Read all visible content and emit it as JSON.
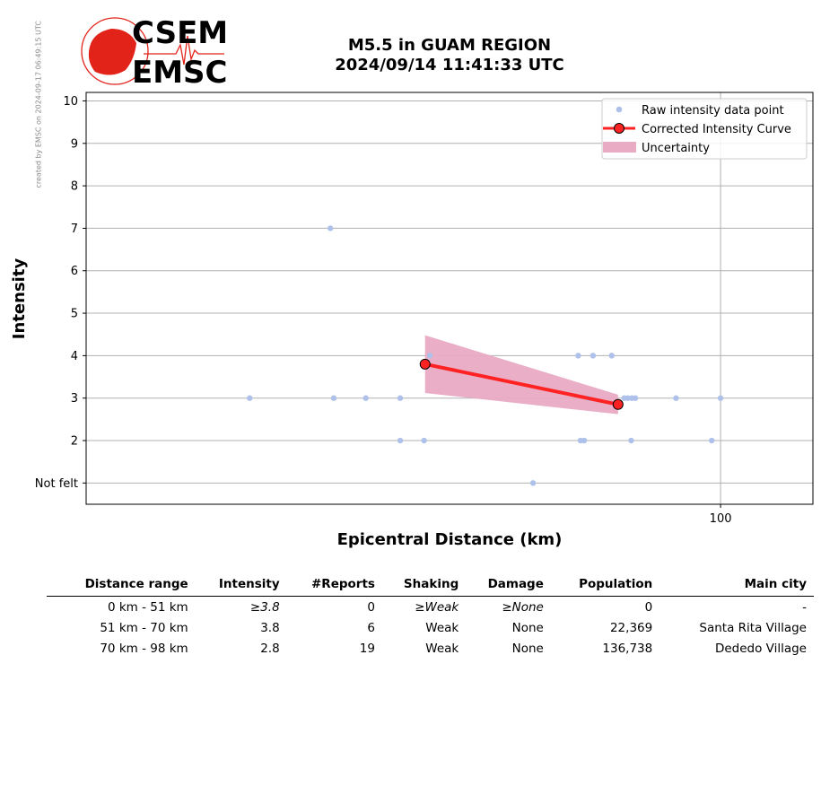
{
  "credit": "created by EMSC on 2024-09-17 06:49:15 UTC",
  "logo": {
    "line1": "CSEM",
    "line2": "EMSC",
    "accent": "#e2231a",
    "text_color": "#2b0f0f"
  },
  "chart_data": {
    "type": "scatter",
    "title": "M5.5 in GUAM REGION",
    "subtitle": "2024/09/14 11:41:33 UTC",
    "xlabel": "Epicentral Distance (km)",
    "ylabel": "Intensity",
    "xscale": "log",
    "xlim": [
      34,
      117
    ],
    "ylim": [
      0.5,
      10.2
    ],
    "xticks": [
      {
        "value": 100,
        "label": "100"
      }
    ],
    "yticks": [
      {
        "value": 1,
        "label": "Not felt"
      },
      {
        "value": 2,
        "label": "2"
      },
      {
        "value": 3,
        "label": "3"
      },
      {
        "value": 4,
        "label": "4"
      },
      {
        "value": 5,
        "label": "5"
      },
      {
        "value": 6,
        "label": "6"
      },
      {
        "value": 7,
        "label": "7"
      },
      {
        "value": 8,
        "label": "8"
      },
      {
        "value": 9,
        "label": "9"
      },
      {
        "value": 10,
        "label": "10"
      }
    ],
    "grid": true,
    "legend_position": "top-right",
    "series": [
      {
        "name": "Raw intensity data point",
        "kind": "points",
        "color": "#aec1ea",
        "points": [
          [
            44.9,
            3
          ],
          [
            51.5,
            7
          ],
          [
            51.8,
            3
          ],
          [
            54.7,
            3
          ],
          [
            58.0,
            3
          ],
          [
            58.0,
            2
          ],
          [
            60.4,
            2
          ],
          [
            61.0,
            4
          ],
          [
            72.7,
            1
          ],
          [
            78.5,
            4
          ],
          [
            78.8,
            2
          ],
          [
            79.3,
            2
          ],
          [
            79.9,
            3
          ],
          [
            80.5,
            4
          ],
          [
            83.1,
            4
          ],
          [
            84.9,
            3
          ],
          [
            85.4,
            3
          ],
          [
            85.9,
            2
          ],
          [
            86.0,
            3
          ],
          [
            86.5,
            3
          ],
          [
            92.7,
            3
          ],
          [
            98.5,
            2
          ],
          [
            100.0,
            3
          ]
        ]
      },
      {
        "name": "Corrected Intensity Curve",
        "kind": "line",
        "color": "#ff2222",
        "points": [
          [
            60.5,
            3.8
          ],
          [
            84.0,
            2.85
          ]
        ]
      },
      {
        "name": "Uncertainty",
        "kind": "band",
        "color": "#e9aac4",
        "x": [
          60.5,
          84.0
        ],
        "lower": [
          3.12,
          2.62
        ],
        "upper": [
          4.48,
          3.08
        ]
      }
    ]
  },
  "table": {
    "headers": [
      "Distance range",
      "Intensity",
      "#Reports",
      "Shaking",
      "Damage",
      "Population",
      "Main city"
    ],
    "rows": [
      [
        "0 km -   51 km",
        "≥3.8",
        "0",
        "≥Weak",
        "≥None",
        "0",
        "-"
      ],
      [
        "51 km -   70 km",
        "3.8",
        "6",
        "Weak",
        "None",
        "22,369",
        "Santa Rita Village"
      ],
      [
        "70 km -   98 km",
        "2.8",
        "19",
        "Weak",
        "None",
        "136,738",
        "Dededo Village"
      ]
    ]
  }
}
